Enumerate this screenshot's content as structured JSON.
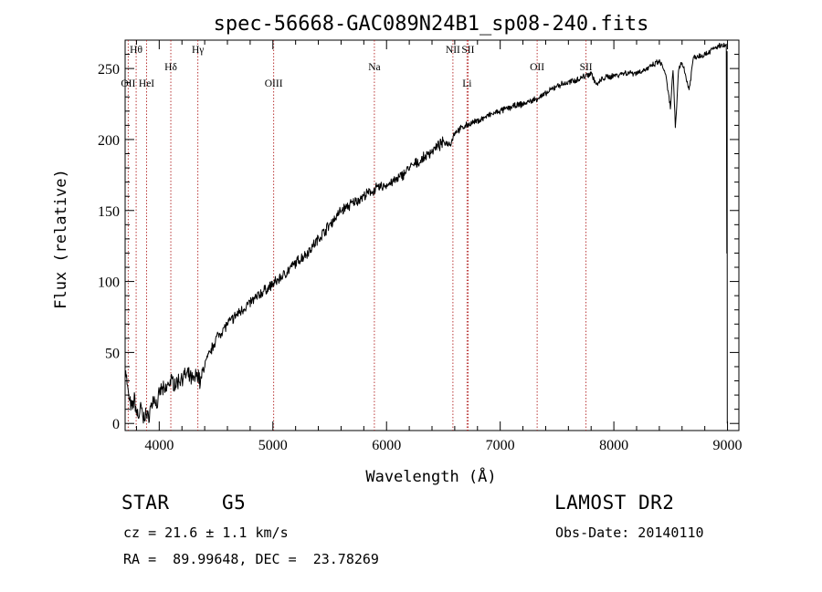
{
  "chart_data": {
    "type": "line",
    "title": "spec-56668-GAC089N24B1_sp08-240.fits",
    "xlabel": "Wavelength (Å)",
    "ylabel": "Flux (relative)",
    "xlim": [
      3700,
      9100
    ],
    "ylim": [
      -5,
      270
    ],
    "xticks": [
      4000,
      5000,
      6000,
      7000,
      8000,
      9000
    ],
    "yticks": [
      0,
      50,
      100,
      150,
      200,
      250
    ],
    "spectrum": {
      "x": [
        3700,
        3720,
        3740,
        3760,
        3780,
        3800,
        3820,
        3840,
        3860,
        3880,
        3900,
        3920,
        3940,
        3960,
        3980,
        4000,
        4020,
        4050,
        4080,
        4100,
        4150,
        4200,
        4250,
        4300,
        4340,
        4360,
        4400,
        4450,
        4500,
        4600,
        4700,
        4800,
        4900,
        5000,
        5100,
        5200,
        5300,
        5400,
        5500,
        5600,
        5700,
        5800,
        5900,
        6000,
        6100,
        6200,
        6300,
        6400,
        6500,
        6563,
        6600,
        6700,
        6800,
        6900,
        7000,
        7100,
        7200,
        7300,
        7400,
        7500,
        7600,
        7700,
        7800,
        7850,
        7900,
        8000,
        8100,
        8200,
        8300,
        8400,
        8450,
        8498,
        8520,
        8542,
        8570,
        8600,
        8662,
        8700,
        8800,
        8900,
        8950,
        8990
      ],
      "y": [
        45,
        25,
        15,
        10,
        18,
        8,
        5,
        12,
        2,
        8,
        3,
        10,
        15,
        18,
        12,
        20,
        25,
        22,
        28,
        30,
        28,
        33,
        34,
        30,
        36,
        28,
        42,
        50,
        60,
        70,
        78,
        85,
        92,
        98,
        105,
        113,
        120,
        130,
        140,
        150,
        155,
        160,
        165,
        168,
        172,
        180,
        185,
        192,
        198,
        197,
        205,
        210,
        213,
        217,
        220,
        223,
        225,
        228,
        232,
        238,
        240,
        243,
        247,
        238,
        243,
        245,
        247,
        247,
        250,
        255,
        248,
        222,
        250,
        207,
        250,
        255,
        235,
        258,
        260,
        265,
        266,
        266
      ]
    },
    "emission_lines": [
      {
        "label": "Hθ",
        "x": 3797
      },
      {
        "label": "OII",
        "x": 3727
      },
      {
        "label": "HeI",
        "x": 3889
      },
      {
        "label": "Hδ",
        "x": 4102
      },
      {
        "label": "Hγ",
        "x": 4340
      },
      {
        "label": "OIII",
        "x": 5007
      },
      {
        "label": "Na",
        "x": 5893
      },
      {
        "label": "NII",
        "x": 6584
      },
      {
        "label": "SII",
        "x": 6717
      },
      {
        "label": "Li",
        "x": 6708
      },
      {
        "label": "OII",
        "x": 7325
      },
      {
        "label": "SII",
        "x": 7755
      }
    ]
  },
  "info": {
    "object_class": "STAR",
    "subclass": "G5",
    "survey": "LAMOST DR2",
    "cz": "cz = 21.6 ± 1.1 km/s",
    "obs_date": "Obs-Date: 20140110",
    "coords": "RA =  89.99648, DEC =  23.78269"
  }
}
